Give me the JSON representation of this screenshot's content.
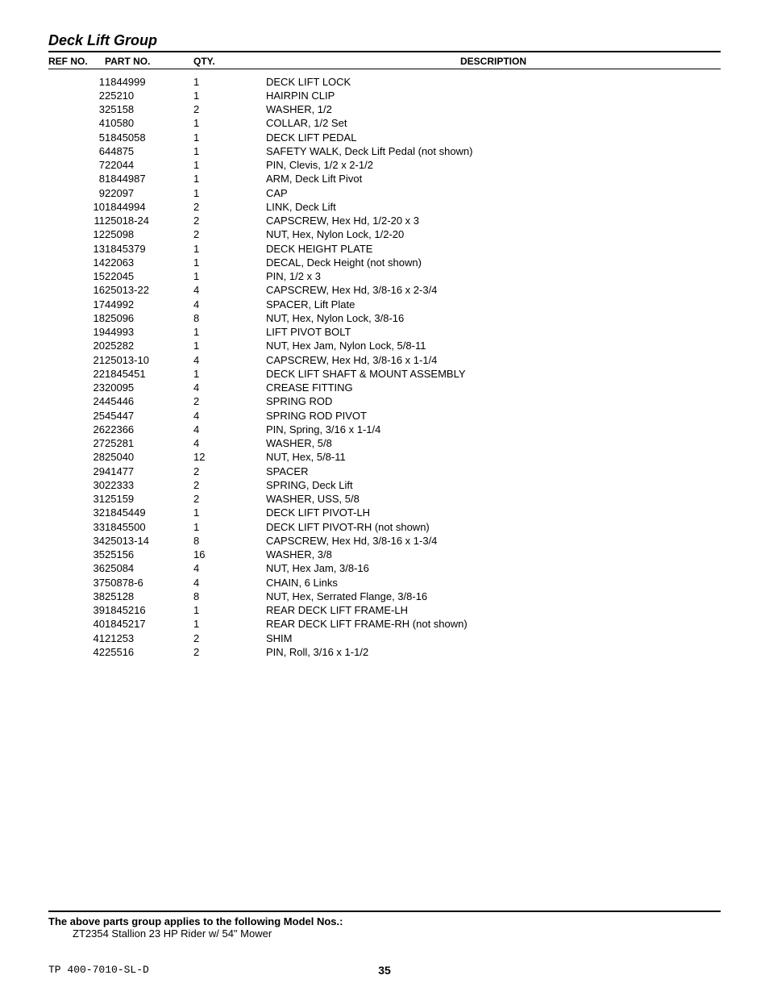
{
  "title": "Deck Lift Group",
  "headers": {
    "ref": "REF NO.",
    "part": "PART NO.",
    "qty": "QTY.",
    "desc": "DESCRIPTION"
  },
  "rows": [
    {
      "ref": "1",
      "part": "1844999",
      "qty": "1",
      "desc": "DECK LIFT LOCK"
    },
    {
      "ref": "2",
      "part": "25210",
      "qty": "1",
      "desc": "HAIRPIN CLIP"
    },
    {
      "ref": "3",
      "part": "25158",
      "qty": "2",
      "desc": "WASHER, 1/2"
    },
    {
      "ref": "4",
      "part": "10580",
      "qty": "1",
      "desc": "COLLAR, 1/2 Set"
    },
    {
      "ref": "5",
      "part": "1845058",
      "qty": "1",
      "desc": "DECK LIFT PEDAL"
    },
    {
      "ref": "6",
      "part": "44875",
      "qty": "1",
      "desc": "SAFETY WALK, Deck Lift Pedal (not shown)"
    },
    {
      "ref": "7",
      "part": "22044",
      "qty": "1",
      "desc": "PIN, Clevis, 1/2 x 2-1/2"
    },
    {
      "ref": "8",
      "part": "1844987",
      "qty": "1",
      "desc": "ARM, Deck Lift Pivot"
    },
    {
      "ref": "9",
      "part": "22097",
      "qty": "1",
      "desc": "CAP"
    },
    {
      "ref": "10",
      "part": "1844994",
      "qty": "2",
      "desc": "LINK, Deck Lift"
    },
    {
      "ref": "11",
      "part": "25018-24",
      "qty": "2",
      "desc": "CAPSCREW, Hex Hd, 1/2-20 x 3"
    },
    {
      "ref": "12",
      "part": "25098",
      "qty": "2",
      "desc": "NUT, Hex, Nylon Lock, 1/2-20"
    },
    {
      "ref": "13",
      "part": "1845379",
      "qty": "1",
      "desc": "DECK HEIGHT PLATE"
    },
    {
      "ref": "14",
      "part": "22063",
      "qty": "1",
      "desc": "DECAL, Deck Height (not shown)"
    },
    {
      "ref": "15",
      "part": "22045",
      "qty": "1",
      "desc": "PIN, 1/2 x 3"
    },
    {
      "ref": "16",
      "part": "25013-22",
      "qty": "4",
      "desc": "CAPSCREW, Hex Hd, 3/8-16 x 2-3/4"
    },
    {
      "ref": "17",
      "part": "44992",
      "qty": "4",
      "desc": "SPACER, Lift Plate"
    },
    {
      "ref": "18",
      "part": "25096",
      "qty": "8",
      "desc": "NUT, Hex, Nylon Lock, 3/8-16"
    },
    {
      "ref": "19",
      "part": "44993",
      "qty": "1",
      "desc": "LIFT PIVOT BOLT"
    },
    {
      "ref": "20",
      "part": "25282",
      "qty": "1",
      "desc": "NUT, Hex Jam, Nylon Lock, 5/8-11"
    },
    {
      "ref": "21",
      "part": "25013-10",
      "qty": "4",
      "desc": "CAPSCREW, Hex Hd, 3/8-16 x 1-1/4"
    },
    {
      "ref": "22",
      "part": "1845451",
      "qty": "1",
      "desc": "DECK LIFT SHAFT & MOUNT ASSEMBLY"
    },
    {
      "ref": "23",
      "part": "20095",
      "qty": "4",
      "desc": "CREASE FITTING"
    },
    {
      "ref": "24",
      "part": "45446",
      "qty": "2",
      "desc": "SPRING ROD"
    },
    {
      "ref": "25",
      "part": "45447",
      "qty": "4",
      "desc": "SPRING ROD PIVOT"
    },
    {
      "ref": "26",
      "part": "22366",
      "qty": "4",
      "desc": "PIN, Spring, 3/16 x 1-1/4"
    },
    {
      "ref": "27",
      "part": "25281",
      "qty": "4",
      "desc": "WASHER, 5/8"
    },
    {
      "ref": "28",
      "part": "25040",
      "qty": "12",
      "desc": "NUT, Hex, 5/8-11"
    },
    {
      "ref": "29",
      "part": "41477",
      "qty": "2",
      "desc": "SPACER"
    },
    {
      "ref": "30",
      "part": "22333",
      "qty": "2",
      "desc": "SPRING, Deck Lift"
    },
    {
      "ref": "31",
      "part": "25159",
      "qty": "2",
      "desc": "WASHER, USS, 5/8"
    },
    {
      "ref": "32",
      "part": "1845449",
      "qty": "1",
      "desc": "DECK LIFT PIVOT-LH"
    },
    {
      "ref": "33",
      "part": "1845500",
      "qty": "1",
      "desc": "DECK LIFT PIVOT-RH (not shown)"
    },
    {
      "ref": "34",
      "part": "25013-14",
      "qty": "8",
      "desc": "CAPSCREW, Hex Hd, 3/8-16 x 1-3/4"
    },
    {
      "ref": "35",
      "part": "25156",
      "qty": "16",
      "desc": "WASHER, 3/8"
    },
    {
      "ref": "36",
      "part": "25084",
      "qty": "4",
      "desc": "NUT, Hex Jam, 3/8-16"
    },
    {
      "ref": "37",
      "part": "50878-6",
      "qty": "4",
      "desc": "CHAIN, 6 Links"
    },
    {
      "ref": "38",
      "part": "25128",
      "qty": "8",
      "desc": "NUT, Hex, Serrated Flange, 3/8-16"
    },
    {
      "ref": "39",
      "part": "1845216",
      "qty": "1",
      "desc": "REAR DECK LIFT FRAME-LH"
    },
    {
      "ref": "40",
      "part": "1845217",
      "qty": "1",
      "desc": "REAR DECK LIFT FRAME-RH (not shown)"
    },
    {
      "ref": "41",
      "part": "21253",
      "qty": "2",
      "desc": "SHIM"
    },
    {
      "ref": "42",
      "part": "25516",
      "qty": "2",
      "desc": "PIN, Roll, 3/16 x 1-1/2"
    }
  ],
  "footer": {
    "note": "The above parts group applies to the following Model Nos.:",
    "model": "ZT2354  Stallion 23 HP Rider w/ 54\" Mower",
    "doc_id": "TP 400-7010-SL-D",
    "page_num": "35"
  }
}
